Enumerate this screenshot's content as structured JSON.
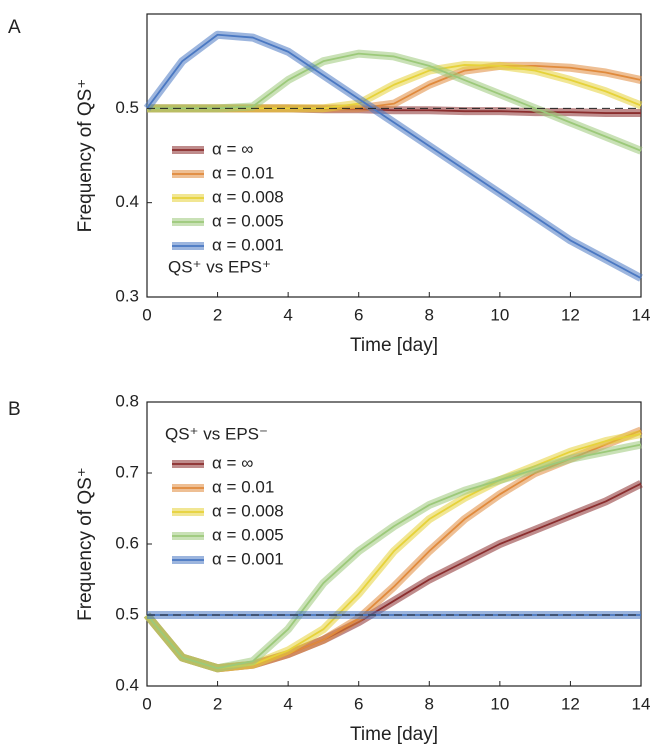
{
  "chart_data": [
    {
      "type": "line",
      "panel": "A",
      "annotation": "QS⁺ vs EPS⁺",
      "xlabel": "Time [day]",
      "ylabel": "Frequency of QS⁺",
      "x": [
        0,
        1,
        2,
        3,
        4,
        5,
        6,
        7,
        8,
        9,
        10,
        11,
        12,
        13,
        14
      ],
      "xlim": [
        0,
        14
      ],
      "xticks": [
        0,
        2,
        4,
        6,
        8,
        10,
        12,
        14
      ],
      "ylim": [
        0.3,
        0.6
      ],
      "yticks": [
        0.3,
        0.4,
        0.5
      ],
      "hline": 0.5,
      "legend": "lower left",
      "series": [
        {
          "name": "α = ∞",
          "color": "#8b2e2e",
          "values": [
            0.5,
            0.5,
            0.5,
            0.5,
            0.5,
            0.499,
            0.499,
            0.498,
            0.498,
            0.497,
            0.497,
            0.496,
            0.496,
            0.495,
            0.495
          ]
        },
        {
          "name": "α = 0.01",
          "color": "#e08a3c",
          "values": [
            0.5,
            0.5,
            0.5,
            0.5,
            0.5,
            0.5,
            0.5,
            0.505,
            0.525,
            0.54,
            0.545,
            0.545,
            0.543,
            0.538,
            0.53
          ]
        },
        {
          "name": "α = 0.008",
          "color": "#e6d23a",
          "values": [
            0.5,
            0.5,
            0.5,
            0.5,
            0.5,
            0.5,
            0.505,
            0.525,
            0.54,
            0.546,
            0.545,
            0.54,
            0.53,
            0.518,
            0.503
          ]
        },
        {
          "name": "α = 0.005",
          "color": "#9cc97a",
          "values": [
            0.5,
            0.5,
            0.5,
            0.502,
            0.53,
            0.55,
            0.558,
            0.555,
            0.545,
            0.53,
            0.515,
            0.5,
            0.485,
            0.47,
            0.455
          ]
        },
        {
          "name": "α = 0.001",
          "color": "#4a78c2",
          "values": [
            0.5,
            0.55,
            0.578,
            0.575,
            0.56,
            0.535,
            0.51,
            0.485,
            0.46,
            0.435,
            0.41,
            0.385,
            0.36,
            0.34,
            0.32
          ]
        }
      ]
    },
    {
      "type": "line",
      "panel": "B",
      "annotation": "QS⁺ vs EPS⁻",
      "xlabel": "Time [day]",
      "ylabel": "Frequency of QS⁺",
      "x": [
        0,
        1,
        2,
        3,
        4,
        5,
        6,
        7,
        8,
        9,
        10,
        11,
        12,
        13,
        14
      ],
      "xlim": [
        0,
        14
      ],
      "xticks": [
        0,
        2,
        4,
        6,
        8,
        10,
        12,
        14
      ],
      "ylim": [
        0.4,
        0.8
      ],
      "yticks": [
        0.4,
        0.5,
        0.6,
        0.7,
        0.8
      ],
      "hline": 0.5,
      "legend": "upper left",
      "series": [
        {
          "name": "α = ∞",
          "color": "#8b2e2e",
          "values": [
            0.5,
            0.44,
            0.425,
            0.43,
            0.445,
            0.465,
            0.49,
            0.52,
            0.55,
            0.575,
            0.6,
            0.62,
            0.64,
            0.66,
            0.685
          ]
        },
        {
          "name": "α = 0.01",
          "color": "#e08a3c",
          "values": [
            0.5,
            0.44,
            0.425,
            0.43,
            0.445,
            0.465,
            0.495,
            0.54,
            0.59,
            0.635,
            0.67,
            0.7,
            0.72,
            0.74,
            0.76
          ]
        },
        {
          "name": "α = 0.008",
          "color": "#e6d23a",
          "values": [
            0.5,
            0.44,
            0.425,
            0.43,
            0.45,
            0.48,
            0.53,
            0.59,
            0.635,
            0.665,
            0.69,
            0.71,
            0.73,
            0.745,
            0.755
          ]
        },
        {
          "name": "α = 0.005",
          "color": "#9cc97a",
          "values": [
            0.5,
            0.44,
            0.425,
            0.435,
            0.48,
            0.545,
            0.59,
            0.625,
            0.655,
            0.675,
            0.69,
            0.705,
            0.72,
            0.73,
            0.74
          ]
        },
        {
          "name": "α = 0.001",
          "color": "#4a78c2",
          "values": [
            0.5,
            0.5,
            0.5,
            0.5,
            0.5,
            0.5,
            0.5,
            0.5,
            0.5,
            0.5,
            0.5,
            0.5,
            0.5,
            0.5,
            0.5
          ]
        }
      ]
    }
  ]
}
